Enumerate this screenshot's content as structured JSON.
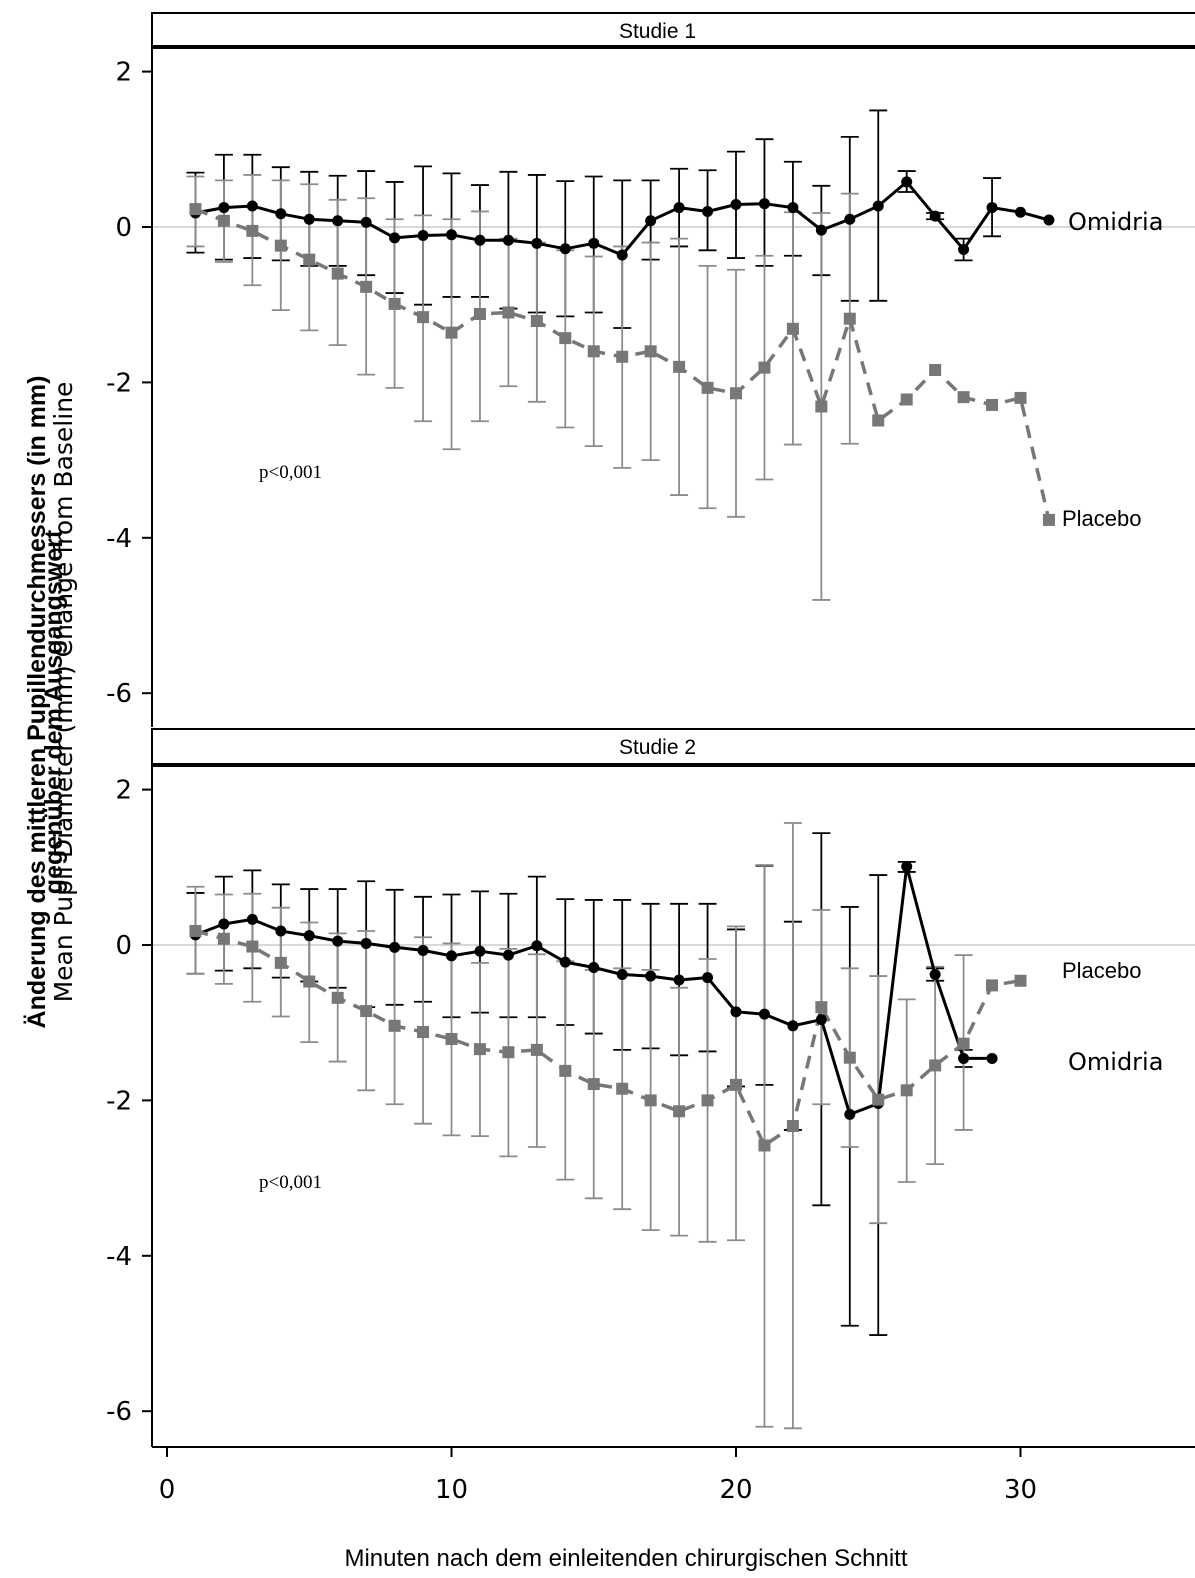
{
  "chart_data": {
    "type": "line",
    "ylabel": [
      "Änderung des mittleren Pupillendurchmessers (in mm)",
      "gegenüber dem Ausgangswert",
      "Mean Pupil Diameter (mm) Change from Baseline"
    ],
    "xlabel": "Minuten nach dem einleitenden chirurgischen Schnitt",
    "xlim": [
      0,
      36
    ],
    "ylim": [
      -6.5,
      2.3
    ],
    "xticks": [
      0,
      10,
      20,
      30
    ],
    "yticks": [
      -6,
      -4,
      -2,
      0,
      2
    ],
    "reference_line": 0,
    "colors": {
      "omidria": "#000000",
      "placebo": "#777777",
      "placebo_error": "#8c8c8c",
      "reference": "#cccccc"
    },
    "panels": [
      {
        "strip": "Studie 1",
        "annotation": "p<0,001",
        "series": [
          {
            "name": "Omidria",
            "style": "solid-circle",
            "x": [
              1,
              2,
              3,
              4,
              5,
              6,
              7,
              8,
              9,
              10,
              11,
              12,
              13,
              14,
              15,
              16,
              17,
              18,
              19,
              20,
              21,
              22,
              23,
              24,
              25,
              26,
              27,
              28,
              29,
              30,
              31
            ],
            "y": [
              0.18,
              0.25,
              0.27,
              0.17,
              0.1,
              0.08,
              0.06,
              -0.14,
              -0.11,
              -0.1,
              -0.17,
              -0.17,
              -0.21,
              -0.28,
              -0.21,
              -0.36,
              0.08,
              0.25,
              0.2,
              0.29,
              0.3,
              0.25,
              -0.04,
              0.1,
              0.27,
              0.58,
              0.14,
              -0.29,
              0.25,
              0.19,
              0.09
            ],
            "err_low": [
              -0.33,
              -0.42,
              -0.4,
              -0.43,
              -0.5,
              -0.5,
              -0.62,
              -0.85,
              -1.0,
              -0.9,
              -0.9,
              -1.05,
              -1.1,
              -1.15,
              -1.1,
              -1.3,
              -0.42,
              -0.25,
              -0.3,
              -0.4,
              -0.5,
              -0.37,
              -0.62,
              -0.95,
              -0.95,
              0.45,
              0.1,
              -0.43,
              -0.12,
              null,
              null
            ],
            "err_high": [
              0.7,
              0.93,
              0.93,
              0.77,
              0.71,
              0.66,
              0.72,
              0.58,
              0.78,
              0.69,
              0.54,
              0.71,
              0.67,
              0.59,
              0.65,
              0.6,
              0.6,
              0.75,
              0.73,
              0.97,
              1.13,
              0.84,
              0.53,
              1.16,
              1.5,
              0.72,
              0.18,
              -0.15,
              0.63,
              null,
              null
            ]
          },
          {
            "name": "Placebo",
            "style": "dashed-square",
            "x": [
              1,
              2,
              3,
              4,
              5,
              6,
              7,
              8,
              9,
              10,
              11,
              12,
              13,
              14,
              15,
              16,
              17,
              18,
              19,
              20,
              21,
              22,
              23,
              24,
              25,
              26,
              27,
              28,
              29,
              30,
              31
            ],
            "y": [
              0.23,
              0.08,
              -0.05,
              -0.24,
              -0.42,
              -0.6,
              -0.77,
              -0.99,
              -1.16,
              -1.36,
              -1.12,
              -1.1,
              -1.21,
              -1.43,
              -1.6,
              -1.67,
              -1.6,
              -1.8,
              -2.07,
              -2.14,
              -1.81,
              -1.31,
              -2.31,
              -1.18,
              -2.49,
              -2.22,
              -1.84,
              -2.19,
              -2.29,
              -2.2,
              -3.77
            ],
            "err_low": [
              -0.25,
              -0.45,
              -0.75,
              -1.07,
              -1.33,
              -1.52,
              -1.9,
              -2.07,
              -2.5,
              -2.86,
              -2.5,
              -2.05,
              -2.25,
              -2.58,
              -2.82,
              -3.1,
              -3.0,
              -3.45,
              -3.62,
              -3.73,
              -3.25,
              -2.8,
              -4.8,
              -2.79,
              null,
              null,
              null,
              null,
              null,
              null,
              null
            ],
            "err_high": [
              0.65,
              0.6,
              0.67,
              0.6,
              0.55,
              0.35,
              0.37,
              0.1,
              0.15,
              0.1,
              0.2,
              -0.15,
              -0.2,
              -0.3,
              -0.38,
              -0.25,
              -0.2,
              -0.15,
              -0.5,
              -0.55,
              -0.37,
              0.19,
              0.18,
              0.43,
              null,
              null,
              null,
              null,
              null,
              null,
              null
            ]
          }
        ]
      },
      {
        "strip": "Studie 2",
        "annotation": "p<0,001",
        "series": [
          {
            "name": "Omidria",
            "style": "solid-circle",
            "x": [
              1,
              2,
              3,
              4,
              5,
              6,
              7,
              8,
              9,
              10,
              11,
              12,
              13,
              14,
              15,
              16,
              17,
              18,
              19,
              20,
              21,
              22,
              23,
              24,
              25,
              26,
              27,
              28,
              29
            ],
            "y": [
              0.13,
              0.27,
              0.33,
              0.18,
              0.12,
              0.05,
              0.02,
              -0.03,
              -0.07,
              -0.14,
              -0.08,
              -0.13,
              -0.01,
              -0.22,
              -0.29,
              -0.38,
              -0.4,
              -0.45,
              -0.42,
              -0.86,
              -0.89,
              -1.04,
              -0.96,
              -2.18,
              -2.04,
              1.01,
              -0.38,
              -1.46,
              -1.46
            ],
            "err_low": [
              -0.37,
              -0.33,
              -0.3,
              -0.42,
              -0.47,
              -0.55,
              -0.8,
              -0.77,
              -0.73,
              -0.93,
              -0.87,
              -0.93,
              -0.93,
              -1.03,
              -1.14,
              -1.35,
              -1.33,
              -1.42,
              -1.37,
              -1.82,
              -1.8,
              -2.38,
              -3.35,
              -4.9,
              -5.02,
              0.94,
              -0.46,
              -1.57,
              null
            ],
            "err_high": [
              0.67,
              0.88,
              0.96,
              0.78,
              0.72,
              0.72,
              0.82,
              0.71,
              0.62,
              0.65,
              0.69,
              0.66,
              0.88,
              0.59,
              0.58,
              0.58,
              0.53,
              0.53,
              0.53,
              0.2,
              1.02,
              0.3,
              1.44,
              0.49,
              0.9,
              1.07,
              -0.3,
              -1.35,
              null
            ]
          },
          {
            "name": "Placebo",
            "style": "dashed-square",
            "x": [
              1,
              2,
              3,
              4,
              5,
              6,
              7,
              8,
              9,
              10,
              11,
              12,
              13,
              14,
              15,
              16,
              17,
              18,
              19,
              20,
              21,
              22,
              23,
              24,
              25,
              26,
              27,
              28,
              29,
              30
            ],
            "y": [
              0.18,
              0.08,
              -0.02,
              -0.23,
              -0.47,
              -0.68,
              -0.85,
              -1.04,
              -1.12,
              -1.21,
              -1.34,
              -1.38,
              -1.35,
              -1.62,
              -1.79,
              -1.85,
              -2.0,
              -2.14,
              -2.0,
              -1.8,
              -2.58,
              -2.33,
              -0.8,
              -1.45,
              -1.99,
              -1.87,
              -1.55,
              -1.27,
              -0.52,
              -0.46
            ],
            "err_low": [
              -0.37,
              -0.5,
              -0.73,
              -0.92,
              -1.25,
              -1.5,
              -1.87,
              -2.05,
              -2.3,
              -2.45,
              -2.46,
              -2.72,
              -2.6,
              -3.02,
              -3.26,
              -3.4,
              -3.67,
              -3.74,
              -3.82,
              -3.8,
              -6.2,
              -6.22,
              -2.05,
              -2.6,
              -3.58,
              -3.05,
              -2.82,
              -2.38,
              null,
              null
            ],
            "err_high": [
              0.75,
              0.65,
              0.66,
              0.48,
              0.29,
              0.15,
              0.18,
              -0.03,
              0.1,
              0.02,
              -0.23,
              -0.05,
              -0.12,
              -0.21,
              -0.32,
              -0.3,
              -0.32,
              -0.55,
              -0.18,
              0.24,
              1.03,
              1.57,
              0.45,
              -0.3,
              -0.4,
              -0.7,
              -0.28,
              -0.13,
              null,
              null
            ]
          }
        ]
      }
    ]
  }
}
